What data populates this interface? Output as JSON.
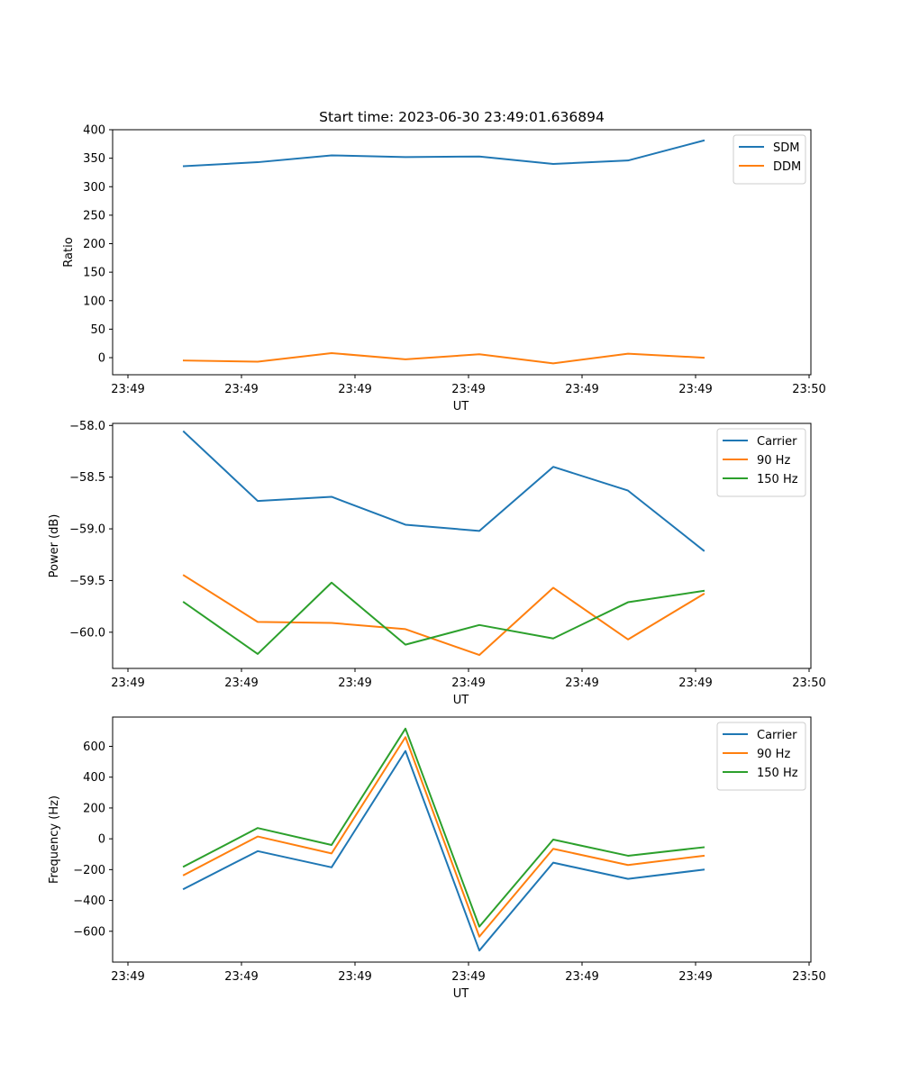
{
  "chart_data": [
    {
      "type": "line",
      "title": "Start time: 2023-06-30 23:49:01.636894",
      "xlabel": "UT",
      "ylabel": "Ratio",
      "x_tick_labels": [
        "23:49",
        "23:49",
        "23:49",
        "23:49",
        "23:49",
        "23:49",
        "23:50"
      ],
      "y_ticks": [
        0,
        50,
        100,
        150,
        200,
        250,
        300,
        350,
        400
      ],
      "ylim": [
        -30,
        400
      ],
      "grid": false,
      "legend_position": "top-right",
      "series": [
        {
          "name": "SDM",
          "color": "#1f77b4",
          "values": [
            336,
            343,
            355,
            352,
            353,
            340,
            346,
            381
          ]
        },
        {
          "name": "DDM",
          "color": "#ff7f0e",
          "values": [
            -5,
            -7,
            8,
            -3,
            6,
            -10,
            7,
            0
          ]
        }
      ]
    },
    {
      "type": "line",
      "title": "",
      "xlabel": "UT",
      "ylabel": "Power (dB)",
      "x_tick_labels": [
        "23:49",
        "23:49",
        "23:49",
        "23:49",
        "23:49",
        "23:49",
        "23:50"
      ],
      "y_ticks": [
        -60.0,
        -59.5,
        -59.0,
        -58.5,
        -58.0
      ],
      "y_tick_labels": [
        "−60.0",
        "−59.5",
        "−59.0",
        "−58.5",
        "−58.0"
      ],
      "ylim": [
        -60.35,
        -57.98
      ],
      "grid": false,
      "legend_position": "top-right",
      "series": [
        {
          "name": "Carrier",
          "color": "#1f77b4",
          "values": [
            -58.06,
            -58.73,
            -58.69,
            -58.96,
            -59.02,
            -58.4,
            -58.63,
            -59.21
          ]
        },
        {
          "name": "90 Hz",
          "color": "#ff7f0e",
          "values": [
            -59.45,
            -59.9,
            -59.91,
            -59.97,
            -60.22,
            -59.57,
            -60.07,
            -59.63
          ]
        },
        {
          "name": "150 Hz",
          "color": "#2ca02c",
          "values": [
            -59.71,
            -60.21,
            -59.52,
            -60.12,
            -59.93,
            -60.06,
            -59.71,
            -59.6
          ]
        }
      ]
    },
    {
      "type": "line",
      "title": "",
      "xlabel": "UT",
      "ylabel": "Frequency (Hz)",
      "x_tick_labels": [
        "23:49",
        "23:49",
        "23:49",
        "23:49",
        "23:49",
        "23:49",
        "23:50"
      ],
      "y_ticks": [
        -600,
        -400,
        -200,
        0,
        200,
        400,
        600
      ],
      "y_tick_labels": [
        "−600",
        "−400",
        "−200",
        "0",
        "200",
        "400",
        "600"
      ],
      "ylim": [
        -800,
        790
      ],
      "grid": false,
      "legend_position": "top-right",
      "series": [
        {
          "name": "Carrier",
          "color": "#1f77b4",
          "values": [
            -325,
            -80,
            -185,
            570,
            -725,
            -155,
            -260,
            -200
          ]
        },
        {
          "name": "90 Hz",
          "color": "#ff7f0e",
          "values": [
            -235,
            15,
            -95,
            660,
            -635,
            -65,
            -170,
            -110
          ]
        },
        {
          "name": "150 Hz",
          "color": "#2ca02c",
          "values": [
            -180,
            70,
            -40,
            715,
            -570,
            -5,
            -110,
            -55
          ]
        }
      ]
    }
  ]
}
